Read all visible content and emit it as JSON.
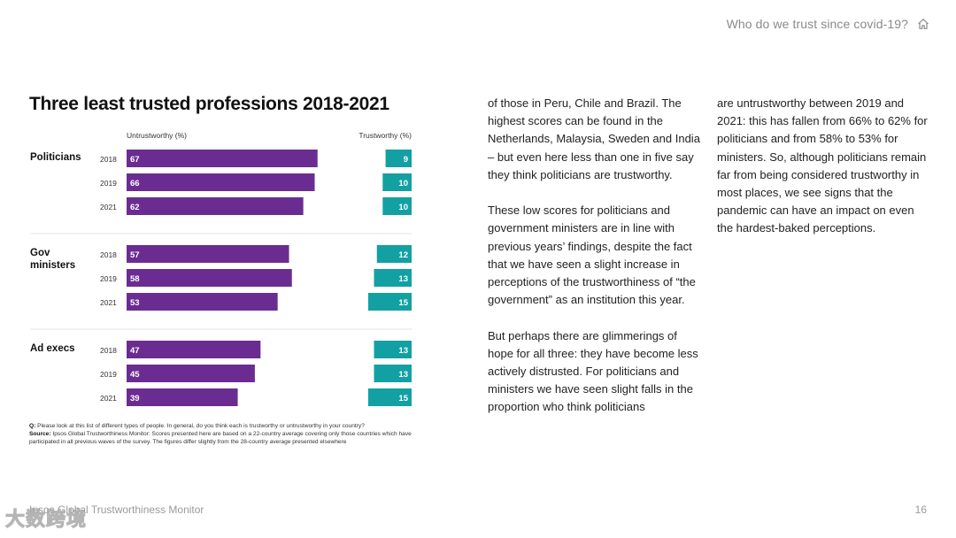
{
  "header": {
    "title": "Who do we trust since covid-19?",
    "home_icon": "home-icon"
  },
  "chart_data": {
    "type": "bar",
    "title": "Three least trusted professions 2018-2021",
    "left_header": "Untrustworthy (%)",
    "right_header": "Trustworthy (%)",
    "left_color": "#6b2c91",
    "right_color": "#13a0a3",
    "groups": [
      {
        "name_lines": [
          "Politicians"
        ],
        "rows": [
          {
            "year": "2018",
            "untrustworthy": 67,
            "trustworthy": 9
          },
          {
            "year": "2019",
            "untrustworthy": 66,
            "trustworthy": 10
          },
          {
            "year": "2021",
            "untrustworthy": 62,
            "trustworthy": 10
          }
        ]
      },
      {
        "name_lines": [
          "Gov",
          "ministers"
        ],
        "rows": [
          {
            "year": "2018",
            "untrustworthy": 57,
            "trustworthy": 12
          },
          {
            "year": "2019",
            "untrustworthy": 58,
            "trustworthy": 13
          },
          {
            "year": "2021",
            "untrustworthy": 53,
            "trustworthy": 15
          }
        ]
      },
      {
        "name_lines": [
          "Ad execs"
        ],
        "rows": [
          {
            "year": "2018",
            "untrustworthy": 47,
            "trustworthy": 13
          },
          {
            "year": "2019",
            "untrustworthy": 45,
            "trustworthy": 13
          },
          {
            "year": "2021",
            "untrustworthy": 39,
            "trustworthy": 15
          }
        ]
      }
    ]
  },
  "note": {
    "q_label": "Q:",
    "q_text": "Please look at this list of different types of people. In general, do you think each is trustworthy or untrustworthy in your country?",
    "source_label": "Source:",
    "source_text": "Ipsos Global Trustworthiness Monitor: Scores presented here are based on a 22-country average covering only those countries which have participated in all previous waves of the survey. The figures differ slightly from the 28-country average presented elsewhere"
  },
  "body": {
    "col1": [
      "of those in Peru, Chile and Brazil. The highest scores can be found in the Netherlands, Malaysia, Sweden and India – but even here less than one in five say they think politicians are trustworthy.",
      "These low scores for politicians and government ministers are in line with previous years’ findings, despite the fact that we have seen a slight increase in perceptions of the trustworthiness of “the government” as an institution this year.",
      "But perhaps there are glimmerings of hope for all three: they have become less actively distrusted. For politicians and ministers we have seen slight falls in the proportion who think politicians"
    ],
    "col2": [
      "are untrustworthy between 2019 and 2021: this has fallen from 66% to 62% for politicians and from 58% to 53% for ministers. So, although politicians remain far from being considered trustworthy in most places, we see signs that the pandemic can have an impact on even the hardest-baked perceptions."
    ]
  },
  "footer": {
    "left": "Ipsos Global Trustworthiness Monitor",
    "page": "16",
    "watermark": "大数跨境"
  }
}
